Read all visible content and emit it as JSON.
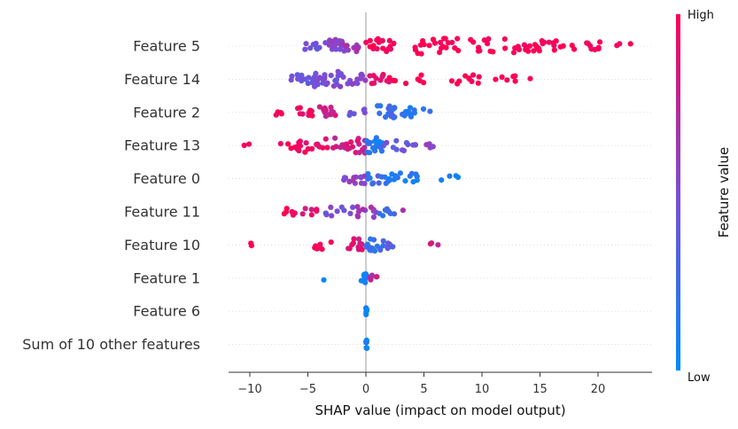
{
  "chart_data": {
    "type": "scatter",
    "subtype": "shap-beeswarm",
    "title": "",
    "xlabel": "SHAP value (impact on model output)",
    "ylabel": "",
    "xlim": [
      -12,
      24
    ],
    "xticks": [
      -10,
      -5,
      0,
      5,
      10,
      15,
      20
    ],
    "xtick_labels": [
      "−10",
      "−5",
      "0",
      "5",
      "10",
      "15",
      "20"
    ],
    "features": [
      {
        "name": "Feature 5",
        "bands": [
          [
            -5.5,
            -4.0,
            0.45,
            8
          ],
          [
            -3.5,
            -2.0,
            0.55,
            20
          ],
          [
            -2.0,
            -0.5,
            0.62,
            12
          ],
          [
            0,
            3.0,
            0.95,
            18
          ],
          [
            3.0,
            8.0,
            1.0,
            22
          ],
          [
            9.0,
            15.0,
            1.0,
            30
          ],
          [
            15.0,
            18.0,
            1.0,
            12
          ],
          [
            19.0,
            20.5,
            1.0,
            8
          ],
          [
            21.0,
            23.0,
            1.0,
            3
          ]
        ]
      },
      {
        "name": "Feature 14",
        "bands": [
          [
            -6.5,
            -4.5,
            0.4,
            12
          ],
          [
            -4.5,
            -2.0,
            0.5,
            24
          ],
          [
            -2.0,
            0,
            0.55,
            14
          ],
          [
            0,
            2.0,
            0.9,
            10
          ],
          [
            2.0,
            5.0,
            1.0,
            8
          ],
          [
            7.0,
            10.0,
            1.0,
            10
          ],
          [
            11.0,
            13.0,
            1.0,
            6
          ],
          [
            14.0,
            14.5,
            1.0,
            1
          ]
        ]
      },
      {
        "name": "Feature 2",
        "bands": [
          [
            -7.8,
            -7.2,
            1.0,
            4
          ],
          [
            -6.0,
            -4.5,
            0.92,
            10
          ],
          [
            -4.0,
            -2.0,
            0.8,
            12
          ],
          [
            -1.5,
            0,
            0.5,
            6
          ],
          [
            1.0,
            3.0,
            0.25,
            16
          ],
          [
            3.0,
            6.0,
            0.15,
            12
          ]
        ]
      },
      {
        "name": "Feature 13",
        "bands": [
          [
            -10.5,
            -10.0,
            1.0,
            2
          ],
          [
            -8.0,
            -6.0,
            1.0,
            4
          ],
          [
            -6.0,
            -3.0,
            0.95,
            16
          ],
          [
            -3.0,
            0,
            0.8,
            22
          ],
          [
            0,
            1.5,
            0.15,
            20
          ],
          [
            1.5,
            4.5,
            0.45,
            12
          ],
          [
            5.0,
            6.0,
            0.6,
            4
          ]
        ]
      },
      {
        "name": "Feature 0",
        "bands": [
          [
            -2.0,
            0,
            0.55,
            14
          ],
          [
            0,
            2.0,
            0.25,
            12
          ],
          [
            2.0,
            5.0,
            0.12,
            14
          ],
          [
            6.0,
            8.0,
            0.05,
            4
          ]
        ]
      },
      {
        "name": "Feature 11",
        "bands": [
          [
            -7.5,
            -6.0,
            1.0,
            6
          ],
          [
            -5.5,
            -4.0,
            0.9,
            6
          ],
          [
            -3.5,
            -1.0,
            0.5,
            10
          ],
          [
            -1.0,
            1.0,
            0.6,
            12
          ],
          [
            1.0,
            2.5,
            0.25,
            8
          ],
          [
            3.0,
            3.5,
            0.7,
            1
          ]
        ]
      },
      {
        "name": "Feature 10",
        "bands": [
          [
            -10.0,
            -9.5,
            1.0,
            2
          ],
          [
            -4.5,
            -3.0,
            1.0,
            8
          ],
          [
            -2.0,
            0,
            0.85,
            14
          ],
          [
            0,
            1.5,
            0.2,
            14
          ],
          [
            1.5,
            2.5,
            0.35,
            8
          ],
          [
            5.0,
            7.0,
            0.8,
            3
          ]
        ]
      },
      {
        "name": "Feature 1",
        "bands": [
          [
            -3.7,
            -3.5,
            0.05,
            1
          ],
          [
            -0.4,
            0.2,
            0.1,
            10
          ],
          [
            0.3,
            1.0,
            0.75,
            6
          ]
        ]
      },
      {
        "name": "Feature 6",
        "bands": [
          [
            0.0,
            0.1,
            0.1,
            8
          ]
        ]
      },
      {
        "name": "Sum of 10 other features",
        "bands": [
          [
            0.0,
            0.1,
            0.1,
            8
          ]
        ]
      }
    ],
    "colorbar": {
      "label": "Feature value",
      "high_label": "High",
      "low_label": "Low",
      "low_color": "#008bfb",
      "mid_color": "#7c4dd6",
      "high_color": "#ff0052"
    }
  }
}
